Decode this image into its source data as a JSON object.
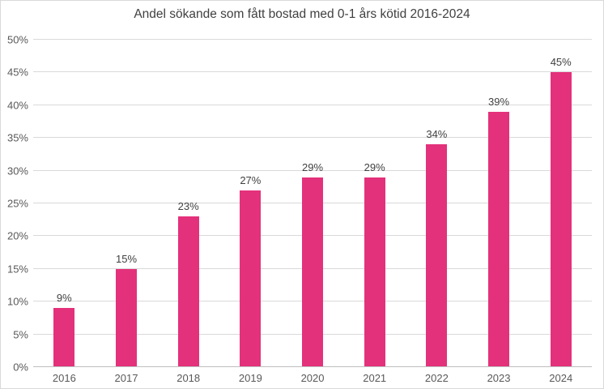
{
  "chart_data": {
    "type": "bar",
    "title": "Andel sökande som fått bostad med 0-1 års kötid 2016-2024",
    "categories": [
      "2016",
      "2017",
      "2018",
      "2019",
      "2020",
      "2021",
      "2022",
      "2023",
      "2024"
    ],
    "values": [
      9,
      15,
      23,
      27,
      29,
      29,
      34,
      39,
      45
    ],
    "data_labels": [
      "9%",
      "15%",
      "23%",
      "27%",
      "29%",
      "29%",
      "34%",
      "39%",
      "45%"
    ],
    "xlabel": "",
    "ylabel": "",
    "ylim": [
      0,
      50
    ],
    "ytick_values": [
      0,
      5,
      10,
      15,
      20,
      25,
      30,
      35,
      40,
      45,
      50
    ],
    "ytick_labels": [
      "0%",
      "5%",
      "10%",
      "15%",
      "20%",
      "25%",
      "30%",
      "35%",
      "40%",
      "45%",
      "50%"
    ],
    "grid": "horizontal",
    "legend_position": "none",
    "colors": {
      "bar": "#E4317B",
      "gridline": "#D9D9D9",
      "axis_line": "#BFBFBF",
      "title_text": "#404040",
      "tick_text": "#595959",
      "data_label_text": "#404040",
      "background": "#FFFFFF",
      "frame_border": "#D9D9D9"
    }
  }
}
